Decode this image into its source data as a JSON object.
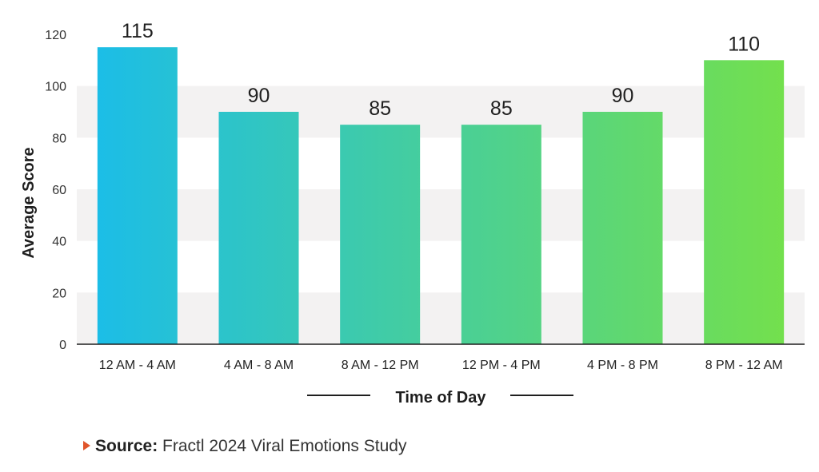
{
  "chart_data": {
    "type": "bar",
    "categories": [
      "12 AM - 4 AM",
      "4 AM - 8 AM",
      "8 AM - 12 PM",
      "12 PM - 4 PM",
      "4 PM - 8 PM",
      "8 PM - 12 AM"
    ],
    "values": [
      115,
      90,
      85,
      85,
      90,
      110
    ],
    "data_labels": [
      "115",
      "90",
      "85",
      "85",
      "90",
      "110"
    ],
    "xlabel": "Time of Day",
    "ylabel": "Average Score",
    "ylim": [
      0,
      120
    ],
    "yticks": [
      "0",
      "20",
      "40",
      "60",
      "80",
      "100",
      "120"
    ],
    "grid": "alternating horizontal bands",
    "colors": {
      "gradient_start": "#1bbde8",
      "gradient_end": "#74e04c",
      "band": "#f3f2f2",
      "axis": "#1f1f1f"
    }
  },
  "footer": {
    "source_label": "Source:",
    "source_text": "Fractl 2024 Viral Emotions Study",
    "arrow_color": "#e0552b"
  }
}
